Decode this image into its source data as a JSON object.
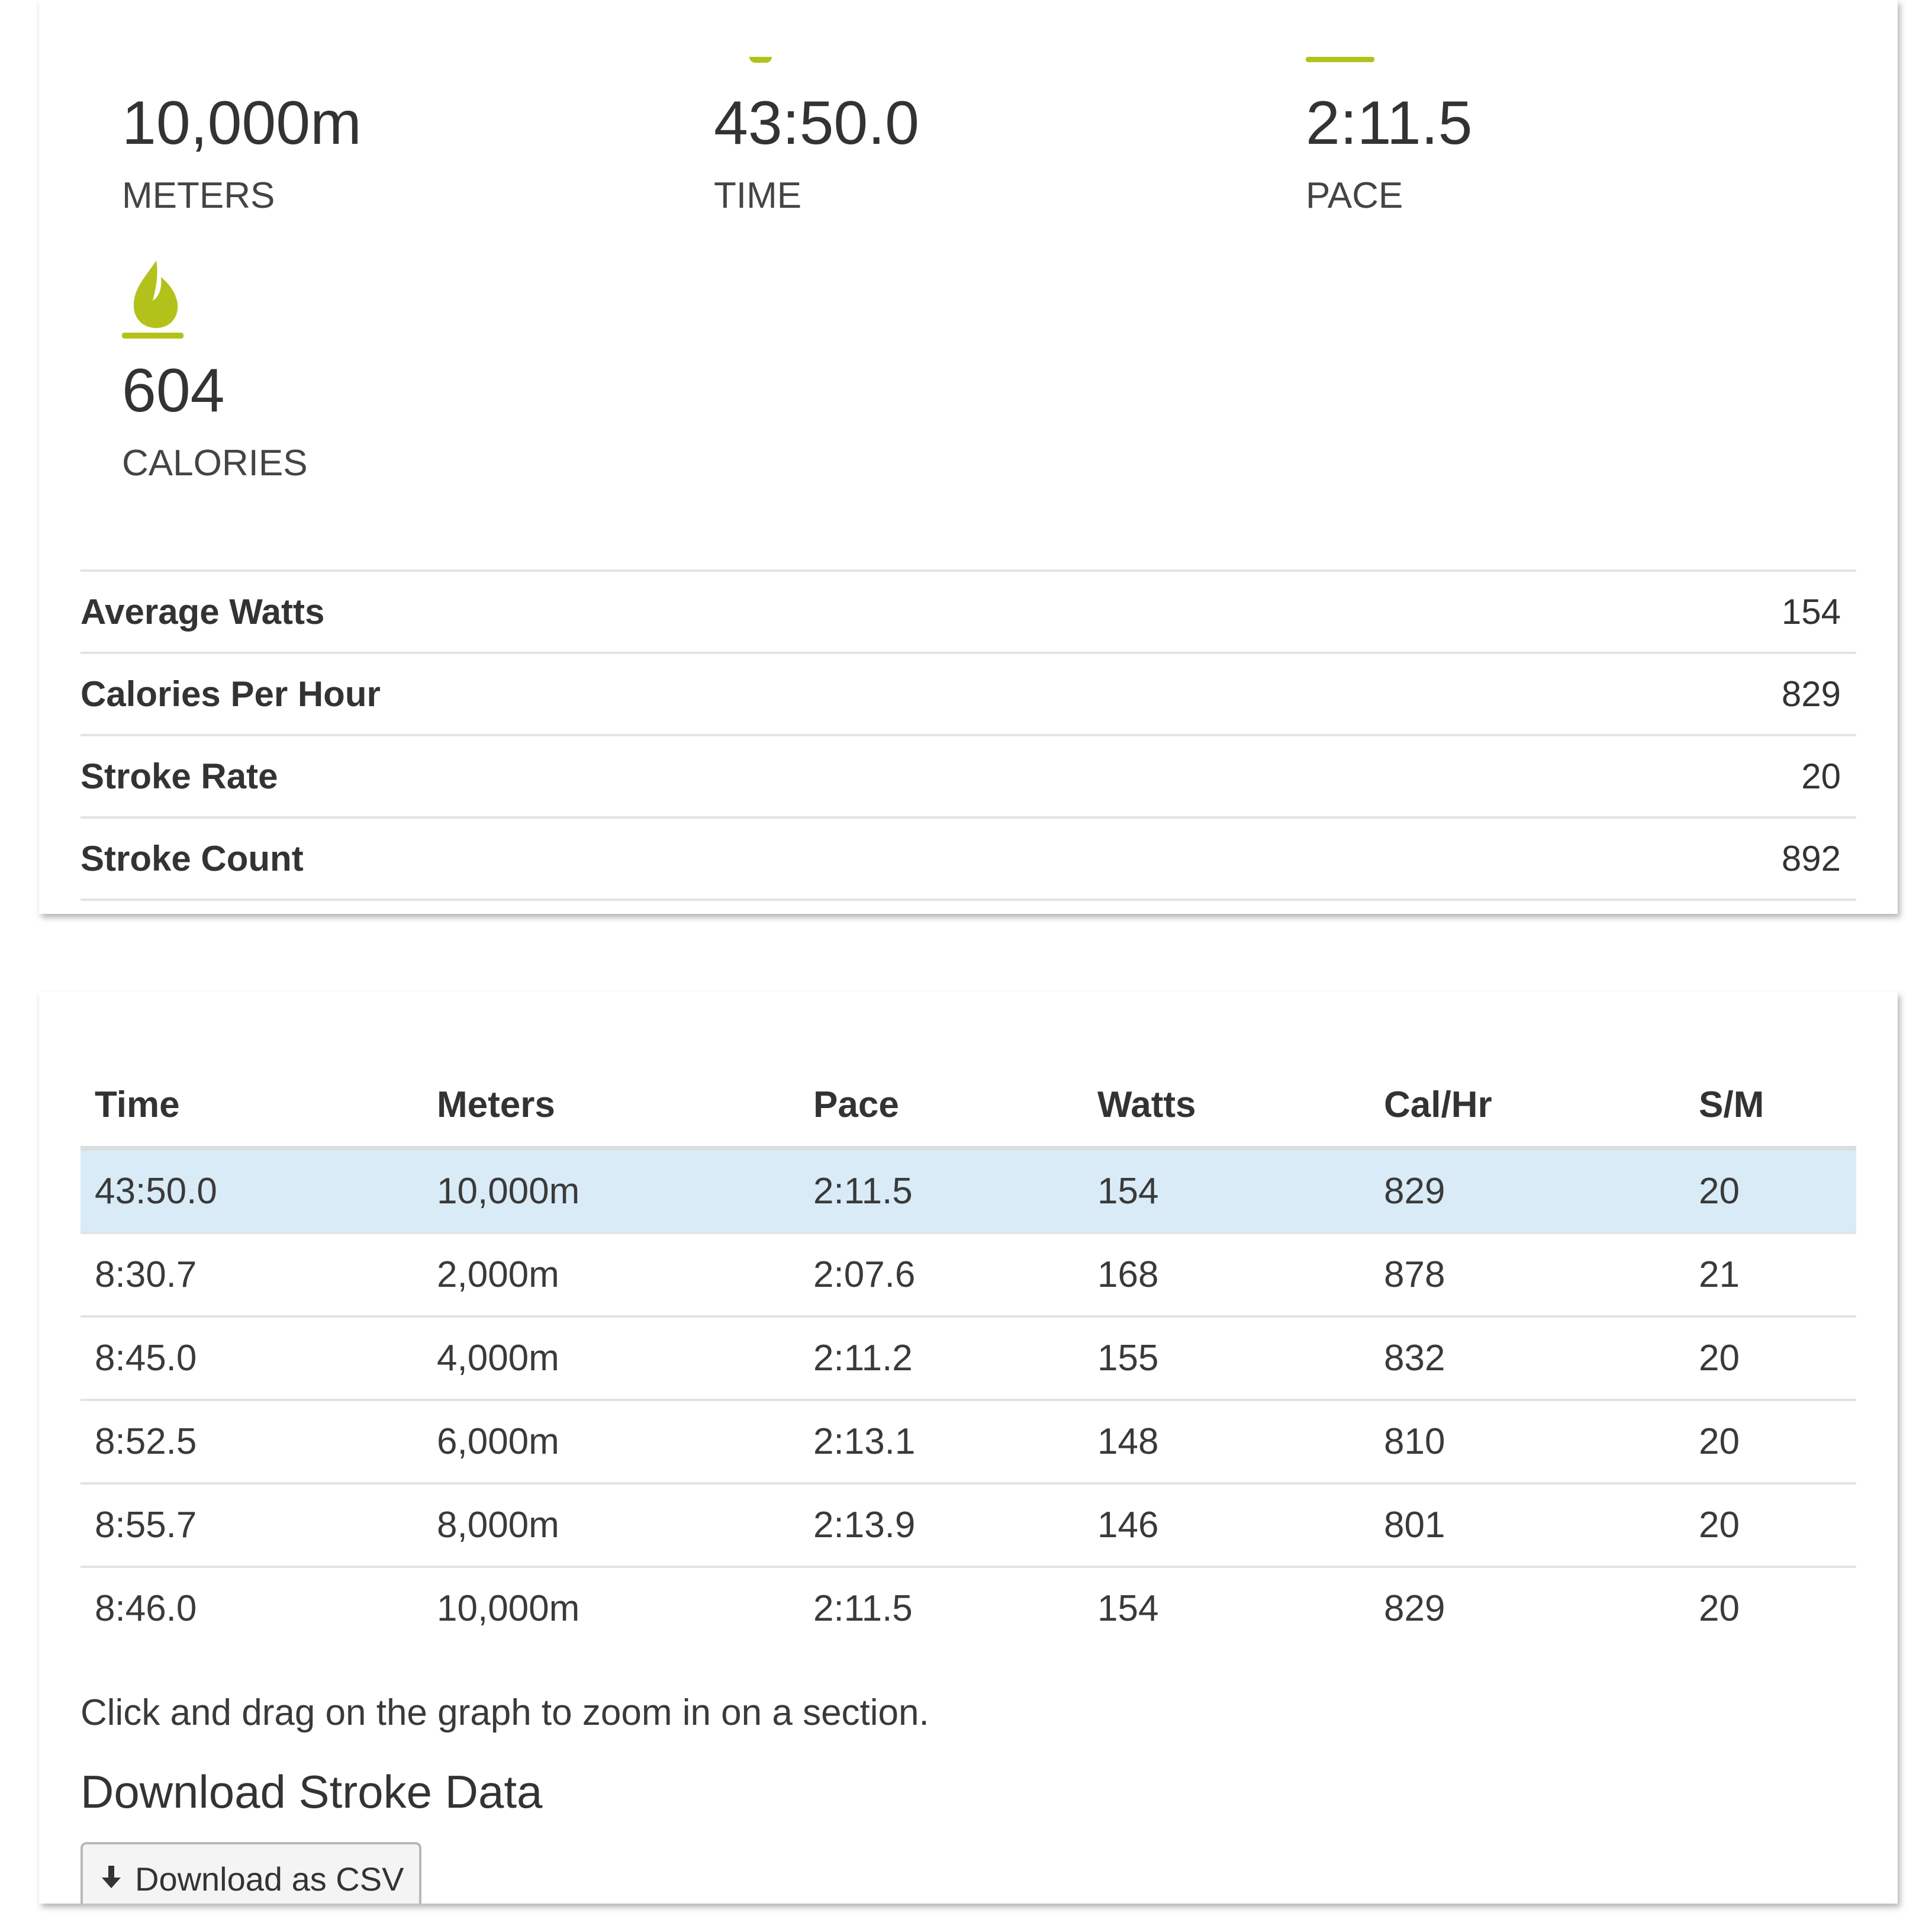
{
  "summary": {
    "stats": [
      {
        "value": "10,000m",
        "label": "METERS"
      },
      {
        "value": "43:50.0",
        "label": "TIME"
      },
      {
        "value": "2:11.5",
        "label": "PACE"
      },
      {
        "value": "604",
        "label": "CALORIES"
      }
    ],
    "metrics": [
      {
        "name": "Average Watts",
        "value": "154"
      },
      {
        "name": "Calories Per Hour",
        "value": "829"
      },
      {
        "name": "Stroke Rate",
        "value": "20"
      },
      {
        "name": "Stroke Count",
        "value": "892"
      }
    ],
    "accent_color": "#b3c21a"
  },
  "splits": {
    "headers": [
      "Time",
      "Meters",
      "Pace",
      "Watts",
      "Cal/Hr",
      "S/M"
    ],
    "rows": [
      [
        "43:50.0",
        "10,000m",
        "2:11.5",
        "154",
        "829",
        "20"
      ],
      [
        "8:30.7",
        "2,000m",
        "2:07.6",
        "168",
        "878",
        "21"
      ],
      [
        "8:45.0",
        "4,000m",
        "2:11.2",
        "155",
        "832",
        "20"
      ],
      [
        "8:52.5",
        "6,000m",
        "2:13.1",
        "148",
        "810",
        "20"
      ],
      [
        "8:55.7",
        "8,000m",
        "2:13.9",
        "146",
        "801",
        "20"
      ],
      [
        "8:46.0",
        "10,000m",
        "2:11.5",
        "154",
        "829",
        "20"
      ]
    ],
    "highlight_color": "#d9ebf7"
  },
  "graph_hint": "Click and drag on the graph to zoom in on a section.",
  "download": {
    "title": "Download Stroke Data",
    "button_label": "Download as CSV",
    "button_icon": "download-arrow-icon"
  }
}
